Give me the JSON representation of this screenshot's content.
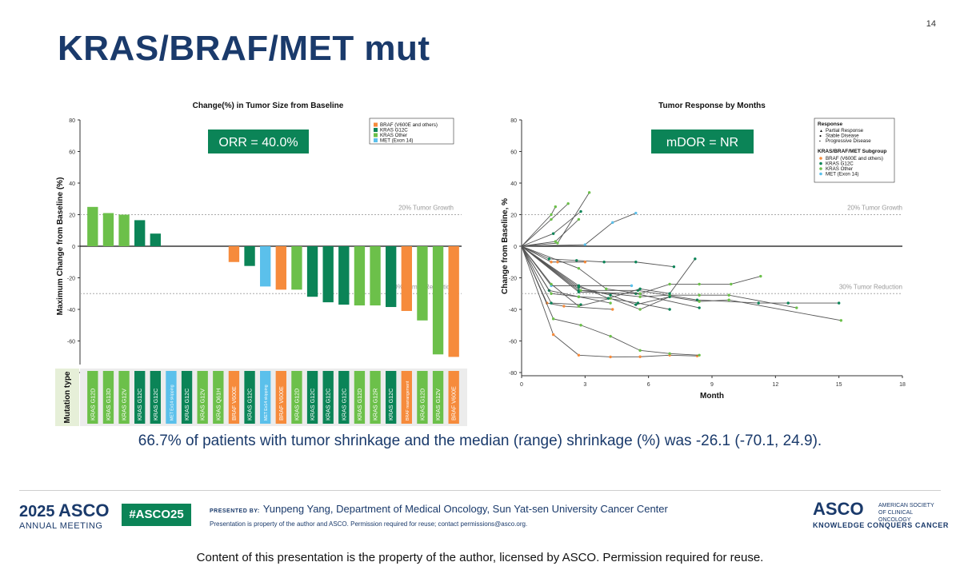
{
  "slide": {
    "page_number": "14",
    "title": "KRAS/BRAF/MET mut",
    "summary": "66.7% of patients with tumor shrinkage and the median (range) shrinkage (%) was -26.1 (-70.1, 24.9).",
    "copyright": "Content of this presentation is the property of the author, licensed by ASCO. Permission required for reuse."
  },
  "footer": {
    "meeting_year": "2025",
    "meeting_word": "ASCO",
    "meeting_name": "ANNUAL MEETING",
    "hashtag": "#ASCO25",
    "presented_by_label": "PRESENTED BY:",
    "presenter": "Yunpeng Yang, Department of Medical Oncology, Sun Yat-sen University Cancer Center",
    "permission": "Presentation is property of the author and ASCO. Permission required for reuse; contact permissions@asco.org.",
    "org_word": "ASCO",
    "org_name": "AMERICAN SOCIETY OF CLINICAL ONCOLOGY",
    "tagline": "KNOWLEDGE CONQUERS CANCER"
  },
  "colors": {
    "title": "#1a3a6b",
    "BRAF": "#f68b3c",
    "KRAS_G12C": "#0b8457",
    "KRAS_Other": "#6cc04a",
    "MET": "#5bc0eb",
    "badge": "#0b8457"
  },
  "chart_data": [
    {
      "type": "bar",
      "title": "Change(%) in Tumor Size from Baseline",
      "ylabel": "Maximum Change from Baseline (%)",
      "xlabel": "Mutation type",
      "ylim": [
        -80,
        80
      ],
      "yticks": [
        80,
        60,
        40,
        20,
        0,
        -20,
        -40,
        -60,
        -80
      ],
      "badge": "ORR = 40.0%",
      "reference_lines": [
        {
          "value": 20,
          "label": "20% Tumor Growth"
        },
        {
          "value": -30,
          "label": "30% Tumor Reduction"
        }
      ],
      "legend": [
        {
          "name": "BRAF (V600E and others)",
          "group": "BRAF"
        },
        {
          "name": "KRAS G12C",
          "group": "KRAS_G12C"
        },
        {
          "name": "KRAS Other",
          "group": "KRAS_Other"
        },
        {
          "name": "MET (Exon 14)",
          "group": "MET"
        }
      ],
      "legend_position": "top-right",
      "grid": false,
      "categories": [
        "KRAS G12D",
        "KRAS G13D",
        "KRAS G12V",
        "KRAS G12C",
        "KRAS G12C",
        "MET Ex14 skipping",
        "KRAS G12C",
        "KRAS G12V",
        "KRAS Q61H",
        "BRAF V600E",
        "KRAS G12C",
        "MET Ex14 skipping",
        "BRAF V600E",
        "KRAS G12D",
        "KRAS G12C",
        "KRAS G12C",
        "KRAS G12C",
        "KRAS G12D",
        "KRAS G12R",
        "KRAS G12C",
        "BRAF rearrangement",
        "KRAS G12D",
        "KRAS G12V",
        "BRAF V600E"
      ],
      "groups": [
        "KRAS_Other",
        "KRAS_Other",
        "KRAS_Other",
        "KRAS_G12C",
        "KRAS_G12C",
        "MET",
        "KRAS_G12C",
        "KRAS_Other",
        "KRAS_Other",
        "BRAF",
        "KRAS_G12C",
        "MET",
        "BRAF",
        "KRAS_Other",
        "KRAS_G12C",
        "KRAS_G12C",
        "KRAS_G12C",
        "KRAS_Other",
        "KRAS_Other",
        "KRAS_G12C",
        "BRAF",
        "KRAS_Other",
        "KRAS_Other",
        "BRAF"
      ],
      "values": [
        24.9,
        21,
        20,
        16.5,
        8,
        null,
        null,
        null,
        null,
        -10,
        -12.5,
        -25.5,
        -27.5,
        -27.5,
        -32,
        -35.5,
        -37,
        -37.5,
        -37.5,
        -38.5,
        -41,
        -47,
        -68.5,
        -70.1
      ]
    },
    {
      "type": "line",
      "title": "Tumor Response by Months",
      "xlabel": "Month",
      "ylabel": "Change from Baseline, %",
      "xlim": [
        0,
        18
      ],
      "ylim": [
        -80,
        80
      ],
      "xticks": [
        0,
        3,
        6,
        9,
        12,
        15,
        18
      ],
      "yticks": [
        80,
        60,
        40,
        20,
        0,
        -20,
        -40,
        -60,
        -80
      ],
      "badge": "mDOR = NR",
      "reference_lines": [
        {
          "value": 20,
          "label": "20% Tumor Growth"
        },
        {
          "value": -30,
          "label": "30% Tumor Reduction"
        }
      ],
      "legend_position": "top-right",
      "grid": false,
      "legend_response_title": "Response",
      "legend_response": [
        "Partial Response",
        "Stable Disease",
        "Progressive Disease"
      ],
      "legend_group_title": "KRAS/BRAF/MET Subgroup",
      "legend_groups": [
        {
          "name": "BRAF (V600E and others)",
          "group": "BRAF"
        },
        {
          "name": "KRAS G12C",
          "group": "KRAS_G12C"
        },
        {
          "name": "KRAS Other",
          "group": "KRAS_Other"
        },
        {
          "name": "MET (Exon 14)",
          "group": "MET"
        }
      ],
      "series": [
        {
          "group": "KRAS_Other",
          "points": [
            [
              0,
              0
            ],
            [
              1.4,
              20
            ],
            [
              1.6,
              25
            ]
          ]
        },
        {
          "group": "KRAS_Other",
          "points": [
            [
              0,
              0
            ],
            [
              1.4,
              17
            ],
            [
              2.2,
              27
            ]
          ]
        },
        {
          "group": "KRAS_G12C",
          "points": [
            [
              0,
              0
            ],
            [
              1.5,
              8
            ],
            [
              2.8,
              22
            ]
          ]
        },
        {
          "group": "KRAS_Other",
          "points": [
            [
              0,
              0
            ],
            [
              1.6,
              3
            ],
            [
              2.7,
              17
            ]
          ]
        },
        {
          "group": "KRAS_Other",
          "points": [
            [
              0,
              0
            ],
            [
              1.7,
              2
            ],
            [
              3.2,
              34
            ]
          ]
        },
        {
          "group": "MET",
          "points": [
            [
              0,
              0
            ],
            [
              3,
              1
            ],
            [
              4.3,
              15
            ],
            [
              5.4,
              21
            ]
          ]
        },
        {
          "group": "KRAS_G12C",
          "points": [
            [
              0,
              0
            ],
            [
              1.3,
              -8
            ],
            [
              2.6,
              -9
            ],
            [
              3.9,
              -10
            ],
            [
              5.4,
              -10
            ],
            [
              7.2,
              -13
            ]
          ]
        },
        {
          "group": "BRAF",
          "points": [
            [
              0,
              0
            ],
            [
              1.4,
              -10
            ],
            [
              1.7,
              -10
            ],
            [
              3,
              -10
            ]
          ]
        },
        {
          "group": "MET",
          "points": [
            [
              0,
              0
            ],
            [
              1.4,
              -25
            ],
            [
              2.7,
              -25
            ],
            [
              5.2,
              -25
            ]
          ]
        },
        {
          "group": "BRAF",
          "points": [
            [
              0,
              0
            ],
            [
              1.2,
              -36
            ],
            [
              2,
              -38
            ],
            [
              4.3,
              -40
            ]
          ]
        },
        {
          "group": "KRAS_G12C",
          "points": [
            [
              0,
              0
            ],
            [
              1.3,
              -28
            ],
            [
              2.7,
              -32
            ],
            [
              4.1,
              -33
            ],
            [
              5.5,
              -36
            ],
            [
              7,
              -40
            ]
          ]
        },
        {
          "group": "KRAS_G12C",
          "points": [
            [
              0,
              0
            ],
            [
              1.4,
              -36
            ],
            [
              2.8,
              -37
            ]
          ]
        },
        {
          "group": "KRAS_G12C",
          "points": [
            [
              0,
              0
            ],
            [
              2.7,
              -29
            ],
            [
              5.4,
              -30
            ],
            [
              8.4,
              -39
            ]
          ]
        },
        {
          "group": "KRAS_G12C",
          "points": [
            [
              0,
              0
            ],
            [
              2.7,
              -28
            ],
            [
              5.5,
              -28
            ],
            [
              8.3,
              -34
            ],
            [
              11.2,
              -36
            ],
            [
              12.6,
              -36
            ],
            [
              15,
              -36
            ]
          ]
        },
        {
          "group": "KRAS_Other",
          "points": [
            [
              0,
              0
            ],
            [
              2.8,
              -28
            ],
            [
              5.6,
              -32
            ],
            [
              7,
              -31
            ],
            [
              8.4,
              -31
            ],
            [
              9.8,
              -31
            ],
            [
              13,
              -39
            ]
          ]
        },
        {
          "group": "KRAS_Other",
          "points": [
            [
              0,
              0
            ],
            [
              2.7,
              -14
            ],
            [
              4,
              -27
            ],
            [
              5.6,
              -30
            ],
            [
              7,
              -24
            ],
            [
              8.4,
              -24
            ],
            [
              9.9,
              -24
            ],
            [
              11.3,
              -19
            ]
          ]
        },
        {
          "group": "KRAS_Other",
          "points": [
            [
              0,
              0
            ],
            [
              1.4,
              -24
            ],
            [
              2.7,
              -38
            ],
            [
              4.2,
              -33
            ],
            [
              5.6,
              -40
            ],
            [
              7,
              -32
            ],
            [
              8.4,
              -35
            ],
            [
              9.8,
              -34
            ],
            [
              15.1,
              -47
            ]
          ]
        },
        {
          "group": "KRAS_Other",
          "points": [
            [
              0,
              0
            ],
            [
              1.4,
              -30
            ],
            [
              2.7,
              -32
            ],
            [
              4.2,
              -36
            ]
          ]
        },
        {
          "group": "KRAS_G12C",
          "points": [
            [
              0,
              0
            ],
            [
              2.7,
              -26
            ],
            [
              4.2,
              -31
            ],
            [
              5.4,
              -37
            ],
            [
              7,
              -32
            ]
          ]
        },
        {
          "group": "KRAS_G12C",
          "points": [
            [
              0,
              0
            ],
            [
              2.7,
              -25
            ],
            [
              4.1,
              -33
            ],
            [
              5.6,
              -27
            ],
            [
              7,
              -30
            ],
            [
              8.2,
              -8
            ]
          ]
        },
        {
          "group": "BRAF",
          "points": [
            [
              0,
              0
            ],
            [
              1.5,
              -56
            ],
            [
              2.7,
              -69
            ],
            [
              4.2,
              -70.1
            ],
            [
              5.6,
              -70
            ],
            [
              7,
              -69
            ],
            [
              8.3,
              -69.5
            ]
          ]
        },
        {
          "group": "KRAS_Other",
          "points": [
            [
              0,
              0
            ],
            [
              1.5,
              -46
            ],
            [
              2.8,
              -50
            ],
            [
              4.2,
              -57
            ],
            [
              5.6,
              -66
            ],
            [
              7,
              -68
            ],
            [
              8.4,
              -69
            ]
          ]
        }
      ]
    }
  ]
}
